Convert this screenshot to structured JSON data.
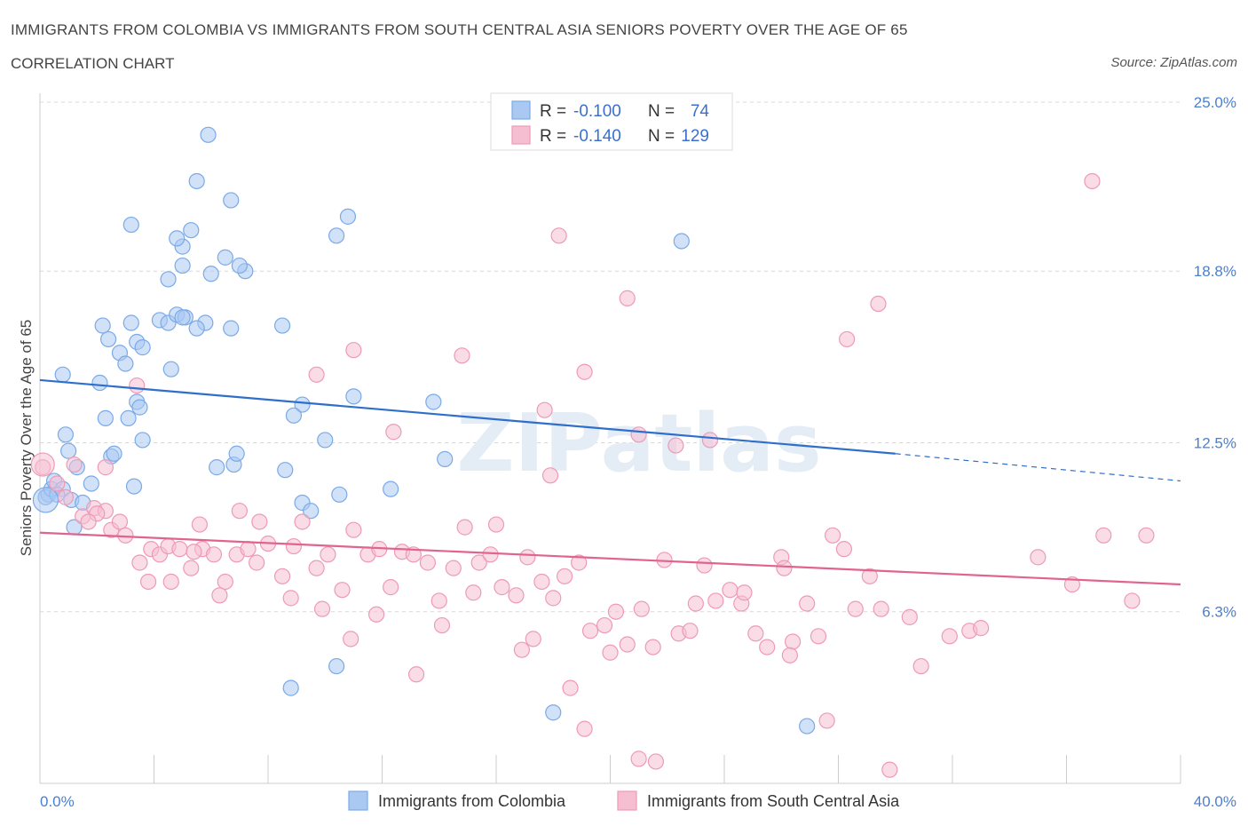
{
  "title": "IMMIGRANTS FROM COLOMBIA VS IMMIGRANTS FROM SOUTH CENTRAL ASIA SENIORS POVERTY OVER THE AGE OF 65",
  "subtitle": "CORRELATION CHART",
  "source": "Source: ZipAtlas.com",
  "watermark": "ZIPatlas",
  "chart_data": {
    "type": "scatter",
    "xlabel": "",
    "ylabel": "Seniors Poverty Over the Age of 65",
    "xlim": [
      0,
      40
    ],
    "ylim": [
      0,
      25
    ],
    "x_tick_labels": [
      "0.0%",
      "40.0%"
    ],
    "y_ticks": [
      6.3,
      12.5,
      18.8,
      25.0
    ],
    "y_tick_labels": [
      "6.3%",
      "12.5%",
      "18.8%",
      "25.0%"
    ],
    "legend": {
      "rows": [
        {
          "r_label": "R =",
          "r_value": "-0.100",
          "n_label": "N =",
          "n_value": "74"
        },
        {
          "r_label": "R =",
          "r_value": "-0.140",
          "n_label": "N =",
          "n_value": "129"
        }
      ]
    },
    "series": [
      {
        "name": "Immigrants from Colombia",
        "color": "#7aaae8",
        "fill": "#a9c8f2",
        "line_color": "#2f6fcc",
        "trend": {
          "x0": 0,
          "y0": 14.8,
          "x1": 30,
          "y1": 12.1,
          "dash_to_x": 40,
          "dash_to_y": 11.1
        },
        "points": [
          [
            0.3,
            10.6
          ],
          [
            0.2,
            10.5
          ],
          [
            0.4,
            10.8
          ],
          [
            0.5,
            11.1
          ],
          [
            0.8,
            10.8
          ],
          [
            0.6,
            10.6
          ],
          [
            1.1,
            10.4
          ],
          [
            1.5,
            10.3
          ],
          [
            1.0,
            12.2
          ],
          [
            1.3,
            11.6
          ],
          [
            1.8,
            11.0
          ],
          [
            1.2,
            9.4
          ],
          [
            0.9,
            12.8
          ],
          [
            0.8,
            15.0
          ],
          [
            2.1,
            14.7
          ],
          [
            2.3,
            13.4
          ],
          [
            2.5,
            12.0
          ],
          [
            2.6,
            12.1
          ],
          [
            3.1,
            13.4
          ],
          [
            3.4,
            14.0
          ],
          [
            3.5,
            13.8
          ],
          [
            3.3,
            10.9
          ],
          [
            3.6,
            12.6
          ],
          [
            2.4,
            16.3
          ],
          [
            2.8,
            15.8
          ],
          [
            3.0,
            15.4
          ],
          [
            3.4,
            16.2
          ],
          [
            2.2,
            16.8
          ],
          [
            3.2,
            16.9
          ],
          [
            4.2,
            17.0
          ],
          [
            4.5,
            16.9
          ],
          [
            4.8,
            17.2
          ],
          [
            5.1,
            17.1
          ],
          [
            5.8,
            16.9
          ],
          [
            3.6,
            16.0
          ],
          [
            5.0,
            17.1
          ],
          [
            4.6,
            15.2
          ],
          [
            5.5,
            16.7
          ],
          [
            6.7,
            16.7
          ],
          [
            8.5,
            16.8
          ],
          [
            6.2,
            11.6
          ],
          [
            6.8,
            11.7
          ],
          [
            6.9,
            12.1
          ],
          [
            8.6,
            11.5
          ],
          [
            9.2,
            10.3
          ],
          [
            9.5,
            10.0
          ],
          [
            10.0,
            12.6
          ],
          [
            10.5,
            10.6
          ],
          [
            12.3,
            10.8
          ],
          [
            14.2,
            11.9
          ],
          [
            11.0,
            14.2
          ],
          [
            13.8,
            14.0
          ],
          [
            9.2,
            13.9
          ],
          [
            8.9,
            13.5
          ],
          [
            3.2,
            20.5
          ],
          [
            5.3,
            20.3
          ],
          [
            6.5,
            19.3
          ],
          [
            7.2,
            18.8
          ],
          [
            5.0,
            19.7
          ],
          [
            4.8,
            20.0
          ],
          [
            6.7,
            21.4
          ],
          [
            5.5,
            22.1
          ],
          [
            5.9,
            23.8
          ],
          [
            10.8,
            20.8
          ],
          [
            10.4,
            20.1
          ],
          [
            22.5,
            19.9
          ],
          [
            5.0,
            19.0
          ],
          [
            4.5,
            18.5
          ],
          [
            7.0,
            19.0
          ],
          [
            6.0,
            18.7
          ],
          [
            10.4,
            4.3
          ],
          [
            8.8,
            3.5
          ],
          [
            18.0,
            2.6
          ],
          [
            26.9,
            2.1
          ]
        ]
      },
      {
        "name": "Immigrants from South Central Asia",
        "color": "#ee9ab6",
        "fill": "#f6bfd1",
        "line_color": "#e0648f",
        "trend": {
          "x0": 0,
          "y0": 9.2,
          "x1": 40,
          "y1": 7.3
        },
        "points": [
          [
            0.1,
            11.6
          ],
          [
            0.6,
            11.0
          ],
          [
            1.2,
            11.7
          ],
          [
            1.5,
            9.8
          ],
          [
            1.9,
            10.1
          ],
          [
            2.3,
            10.0
          ],
          [
            2.5,
            9.3
          ],
          [
            2.8,
            9.6
          ],
          [
            3.0,
            9.1
          ],
          [
            3.5,
            8.1
          ],
          [
            3.9,
            8.6
          ],
          [
            4.2,
            8.4
          ],
          [
            4.5,
            8.7
          ],
          [
            4.9,
            8.6
          ],
          [
            5.3,
            7.9
          ],
          [
            5.7,
            8.6
          ],
          [
            6.1,
            8.4
          ],
          [
            6.5,
            7.4
          ],
          [
            6.9,
            8.4
          ],
          [
            7.3,
            8.6
          ],
          [
            7.6,
            8.1
          ],
          [
            8.0,
            8.8
          ],
          [
            8.5,
            7.6
          ],
          [
            8.9,
            8.7
          ],
          [
            9.2,
            9.6
          ],
          [
            9.7,
            7.9
          ],
          [
            10.1,
            8.4
          ],
          [
            10.6,
            7.1
          ],
          [
            11.0,
            9.3
          ],
          [
            11.5,
            8.4
          ],
          [
            11.9,
            8.6
          ],
          [
            12.3,
            7.2
          ],
          [
            12.7,
            8.5
          ],
          [
            13.1,
            8.4
          ],
          [
            13.6,
            8.1
          ],
          [
            14.0,
            6.7
          ],
          [
            14.5,
            7.9
          ],
          [
            14.9,
            9.4
          ],
          [
            15.4,
            8.1
          ],
          [
            15.8,
            8.4
          ],
          [
            16.2,
            7.2
          ],
          [
            16.7,
            6.9
          ],
          [
            17.1,
            8.3
          ],
          [
            17.6,
            7.4
          ],
          [
            18.0,
            6.8
          ],
          [
            18.4,
            7.6
          ],
          [
            18.9,
            8.1
          ],
          [
            19.3,
            5.6
          ],
          [
            19.8,
            5.8
          ],
          [
            20.2,
            6.3
          ],
          [
            20.6,
            5.1
          ],
          [
            21.1,
            6.4
          ],
          [
            21.5,
            5.0
          ],
          [
            21.9,
            8.2
          ],
          [
            22.4,
            5.5
          ],
          [
            22.8,
            5.6
          ],
          [
            23.3,
            8.0
          ],
          [
            23.7,
            6.7
          ],
          [
            24.2,
            7.1
          ],
          [
            24.6,
            6.6
          ],
          [
            25.1,
            5.5
          ],
          [
            25.5,
            5.0
          ],
          [
            26.0,
            8.3
          ],
          [
            26.4,
            5.2
          ],
          [
            26.9,
            6.6
          ],
          [
            27.3,
            5.4
          ],
          [
            27.8,
            9.1
          ],
          [
            28.2,
            8.6
          ],
          [
            28.6,
            6.4
          ],
          [
            29.1,
            7.6
          ],
          [
            2.0,
            9.9
          ],
          [
            3.8,
            7.4
          ],
          [
            4.6,
            7.4
          ],
          [
            5.4,
            8.5
          ],
          [
            6.3,
            6.9
          ],
          [
            7.7,
            9.6
          ],
          [
            8.8,
            6.8
          ],
          [
            9.9,
            6.4
          ],
          [
            10.9,
            5.3
          ],
          [
            11.8,
            6.2
          ],
          [
            13.2,
            4.0
          ],
          [
            14.1,
            5.8
          ],
          [
            15.2,
            7.0
          ],
          [
            16.0,
            9.5
          ],
          [
            16.9,
            4.9
          ],
          [
            17.3,
            5.3
          ],
          [
            18.6,
            3.5
          ],
          [
            19.1,
            2.0
          ],
          [
            20.0,
            4.8
          ],
          [
            21.0,
            0.9
          ],
          [
            21.6,
            0.8
          ],
          [
            23.0,
            6.6
          ],
          [
            24.7,
            7.0
          ],
          [
            26.3,
            4.7
          ],
          [
            27.6,
            2.3
          ],
          [
            29.5,
            6.4
          ],
          [
            29.8,
            0.5
          ],
          [
            30.5,
            6.1
          ],
          [
            30.9,
            4.3
          ],
          [
            31.9,
            5.4
          ],
          [
            32.6,
            5.6
          ],
          [
            33.0,
            5.7
          ],
          [
            35.0,
            8.3
          ],
          [
            36.2,
            7.3
          ],
          [
            37.3,
            9.1
          ],
          [
            38.3,
            6.7
          ],
          [
            38.8,
            9.1
          ],
          [
            36.9,
            22.1
          ],
          [
            29.4,
            17.6
          ],
          [
            28.3,
            16.3
          ],
          [
            18.2,
            20.1
          ],
          [
            20.6,
            17.8
          ],
          [
            19.1,
            15.1
          ],
          [
            14.8,
            15.7
          ],
          [
            11.0,
            15.9
          ],
          [
            9.7,
            15.0
          ],
          [
            12.4,
            12.9
          ],
          [
            17.9,
            11.3
          ],
          [
            17.7,
            13.7
          ],
          [
            21.0,
            12.8
          ],
          [
            22.3,
            12.4
          ],
          [
            23.5,
            12.6
          ],
          [
            3.4,
            14.6
          ],
          [
            5.6,
            9.5
          ],
          [
            7.0,
            10.0
          ],
          [
            1.7,
            9.6
          ],
          [
            2.3,
            11.6
          ],
          [
            0.9,
            10.5
          ],
          [
            26.1,
            7.9
          ]
        ]
      }
    ]
  },
  "bottom_legend": [
    "Immigrants from Colombia",
    "Immigrants from South Central Asia"
  ]
}
